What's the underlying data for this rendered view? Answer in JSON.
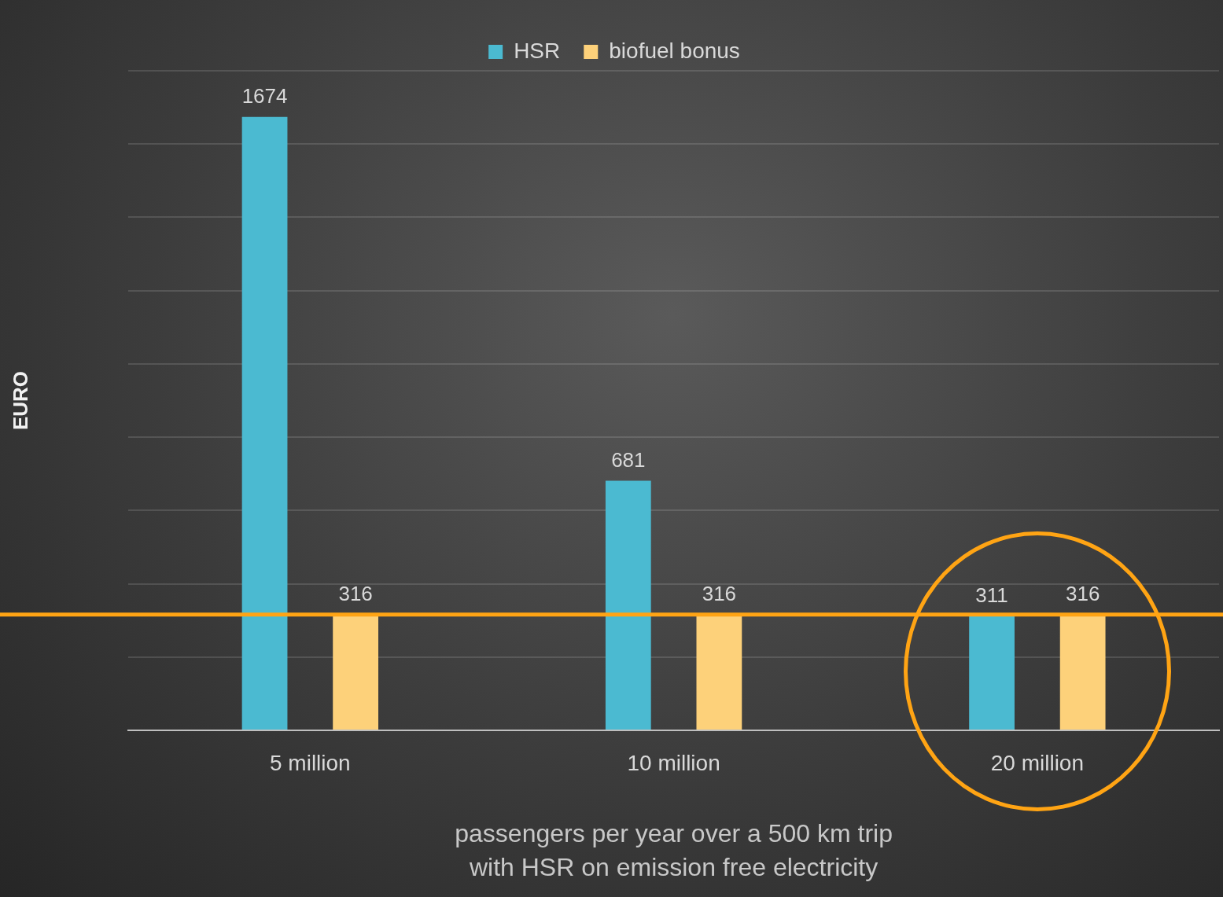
{
  "chart_data": {
    "type": "bar",
    "xlabel": "passengers per year over a 500 km trip\nwith HSR on emission free electricity",
    "ylabel": "EURO",
    "categories": [
      "5 million",
      "10 million",
      "20 million"
    ],
    "series": [
      {
        "name": "HSR",
        "color": "#4bbad1",
        "values": [
          1674,
          681,
          311
        ]
      },
      {
        "name": "biofuel bonus",
        "color": "#fdd17a",
        "values": [
          316,
          316,
          316
        ]
      }
    ],
    "ylim": [
      0,
      1800
    ],
    "yticks": [
      0,
      200,
      400,
      600,
      800,
      1000,
      1200,
      1400,
      1600,
      1800
    ],
    "tick_labels": "x",
    "grid": "y",
    "legend": "top",
    "data_labels": true,
    "ref_lines": [
      {
        "axis": "y",
        "value": 316,
        "color": "#ffa414"
      }
    ]
  }
}
